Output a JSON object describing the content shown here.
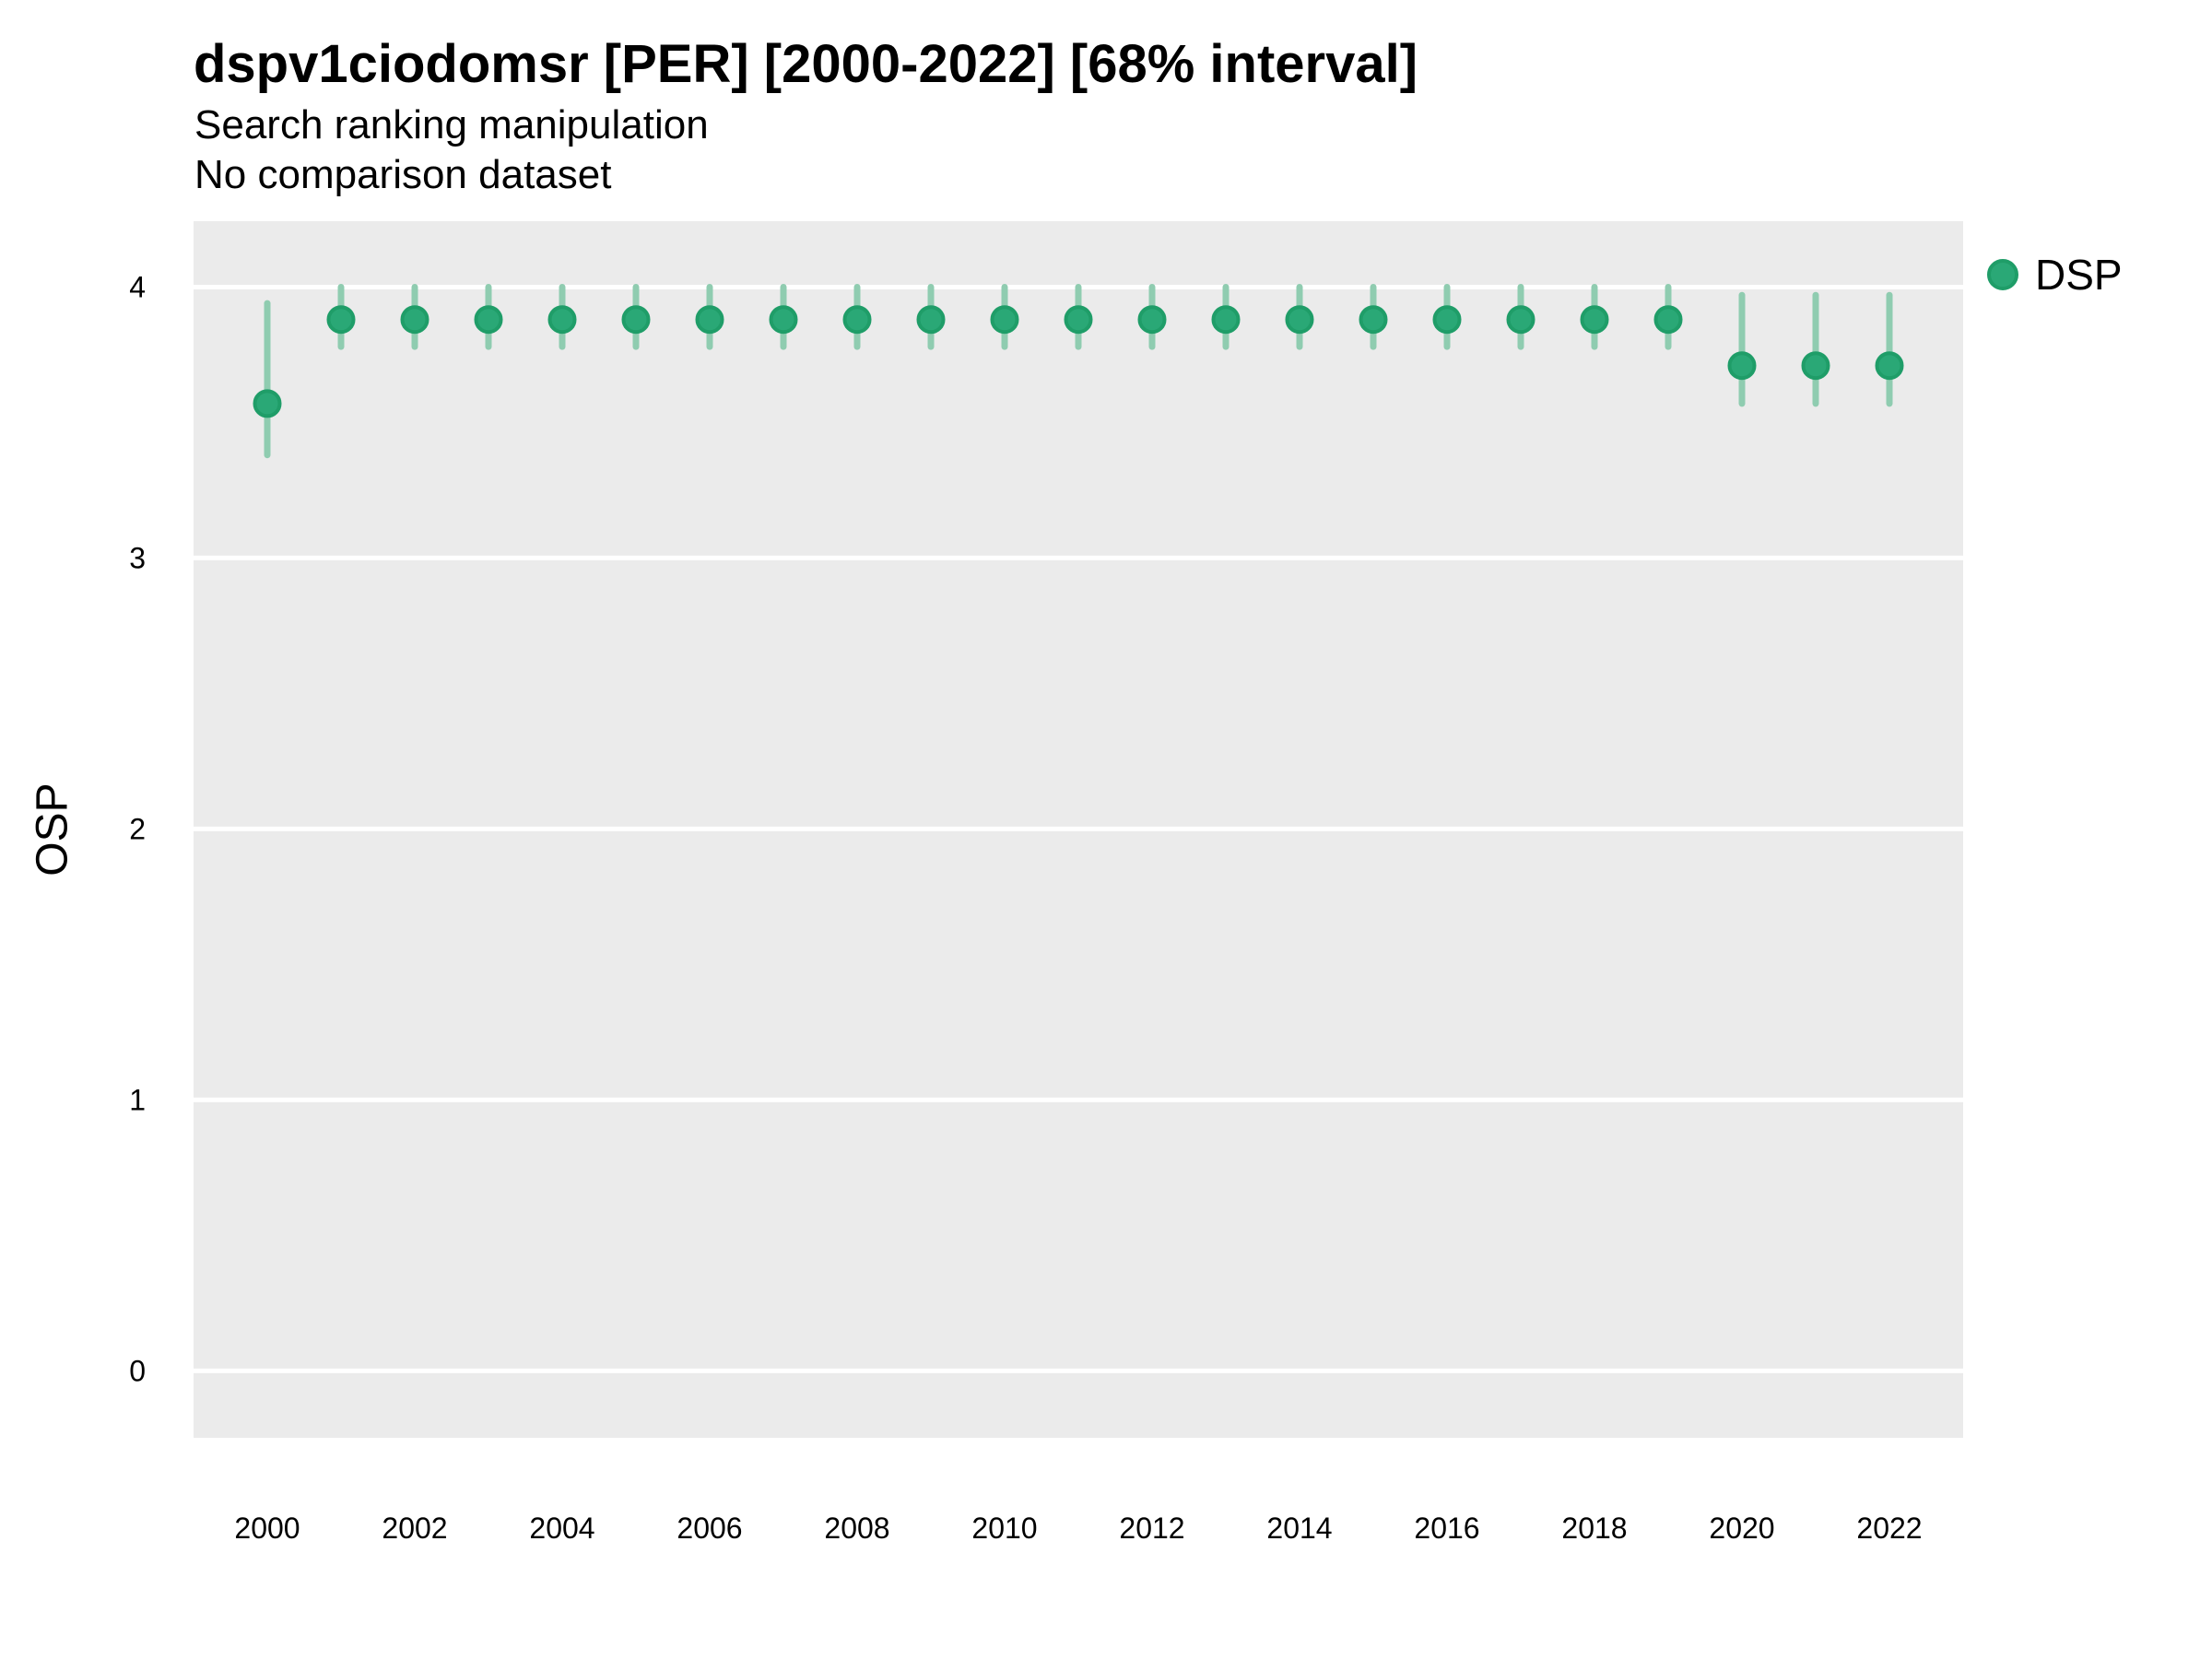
{
  "header": {
    "title": "dspv1ciodomsr [PER] [2000-2022] [68% interval]",
    "subtitle": "Search ranking manipulation",
    "caption": "No comparison dataset"
  },
  "axes": {
    "y_label": "OSP"
  },
  "legend": {
    "items": [
      {
        "label": "DSP"
      }
    ]
  },
  "chart_data": {
    "type": "pointinterval",
    "title": "dspv1ciodomsr [PER] [2000-2022] [68% interval]",
    "subtitle": "Search ranking manipulation",
    "caption": "No comparison dataset",
    "xlabel": "",
    "ylabel": "OSP",
    "interval_level": "68%",
    "x_domain": [
      1999,
      2023
    ],
    "y_domain": [
      -0.247,
      4.243
    ],
    "x_ticks": [
      2000,
      2002,
      2004,
      2006,
      2008,
      2010,
      2012,
      2014,
      2016,
      2018,
      2020,
      2022
    ],
    "y_ticks": [
      0,
      1,
      2,
      3,
      4
    ],
    "grid": "major-horizontal-white-on-gray",
    "legend_position": "right-top",
    "series": [
      {
        "name": "DSP",
        "points": [
          {
            "x": 2000,
            "y": 3.57,
            "lo": 3.38,
            "hi": 3.94
          },
          {
            "x": 2001,
            "y": 3.88,
            "lo": 3.78,
            "hi": 4.0
          },
          {
            "x": 2002,
            "y": 3.88,
            "lo": 3.78,
            "hi": 4.0
          },
          {
            "x": 2003,
            "y": 3.88,
            "lo": 3.78,
            "hi": 4.0
          },
          {
            "x": 2004,
            "y": 3.88,
            "lo": 3.78,
            "hi": 4.0
          },
          {
            "x": 2005,
            "y": 3.88,
            "lo": 3.78,
            "hi": 4.0
          },
          {
            "x": 2006,
            "y": 3.88,
            "lo": 3.78,
            "hi": 4.0
          },
          {
            "x": 2007,
            "y": 3.88,
            "lo": 3.78,
            "hi": 4.0
          },
          {
            "x": 2008,
            "y": 3.88,
            "lo": 3.78,
            "hi": 4.0
          },
          {
            "x": 2009,
            "y": 3.88,
            "lo": 3.78,
            "hi": 4.0
          },
          {
            "x": 2010,
            "y": 3.88,
            "lo": 3.78,
            "hi": 4.0
          },
          {
            "x": 2011,
            "y": 3.88,
            "lo": 3.78,
            "hi": 4.0
          },
          {
            "x": 2012,
            "y": 3.88,
            "lo": 3.78,
            "hi": 4.0
          },
          {
            "x": 2013,
            "y": 3.88,
            "lo": 3.78,
            "hi": 4.0
          },
          {
            "x": 2014,
            "y": 3.88,
            "lo": 3.78,
            "hi": 4.0
          },
          {
            "x": 2015,
            "y": 3.88,
            "lo": 3.78,
            "hi": 4.0
          },
          {
            "x": 2016,
            "y": 3.88,
            "lo": 3.78,
            "hi": 4.0
          },
          {
            "x": 2017,
            "y": 3.88,
            "lo": 3.78,
            "hi": 4.0
          },
          {
            "x": 2018,
            "y": 3.88,
            "lo": 3.78,
            "hi": 4.0
          },
          {
            "x": 2019,
            "y": 3.88,
            "lo": 3.78,
            "hi": 4.0
          },
          {
            "x": 2020,
            "y": 3.71,
            "lo": 3.57,
            "hi": 3.97
          },
          {
            "x": 2021,
            "y": 3.71,
            "lo": 3.57,
            "hi": 3.97
          },
          {
            "x": 2022,
            "y": 3.71,
            "lo": 3.57,
            "hi": 3.97
          }
        ]
      }
    ],
    "colors": {
      "point_fill": "#2aa876",
      "point_stroke": "#1f9d68",
      "interval": "#8fccb0",
      "panel_bg": "#ebebeb",
      "gridline": "#ffffff",
      "text": "#000000"
    }
  }
}
